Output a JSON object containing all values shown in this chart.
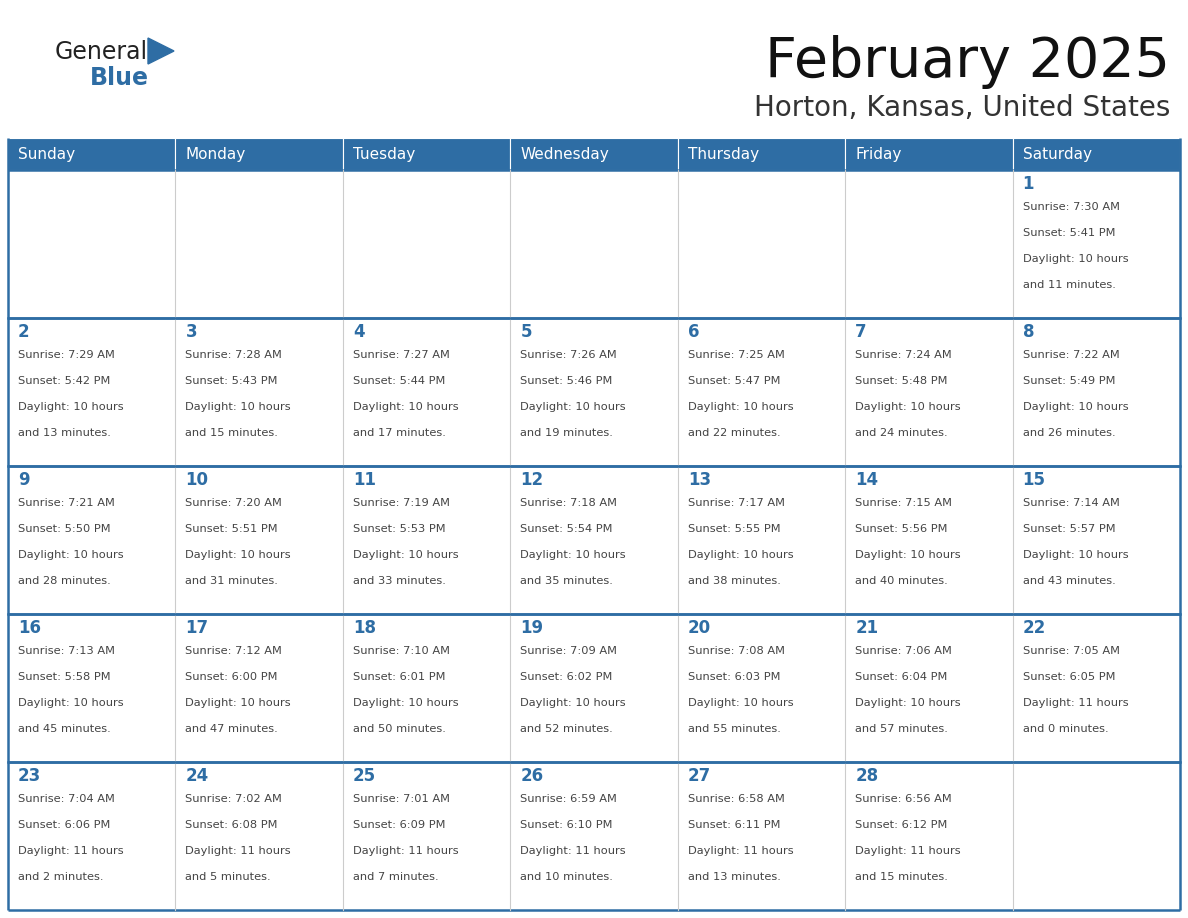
{
  "title": "February 2025",
  "subtitle": "Horton, Kansas, United States",
  "header_bg_color": "#2E6DA4",
  "header_text_color": "#FFFFFF",
  "day_headers": [
    "Sunday",
    "Monday",
    "Tuesday",
    "Wednesday",
    "Thursday",
    "Friday",
    "Saturday"
  ],
  "cell_bg_color": "#FFFFFF",
  "grid_line_color": "#2E6DA4",
  "day_num_color": "#2E6DA4",
  "info_text_color": "#444444",
  "logo_general_color": "#222222",
  "logo_blue_color": "#2E6DA4",
  "calendar_data": [
    [
      null,
      null,
      null,
      null,
      null,
      null,
      {
        "day": 1,
        "sunrise": "7:30 AM",
        "sunset": "5:41 PM",
        "daylight": "10 hours",
        "daylight2": "and 11 minutes."
      }
    ],
    [
      {
        "day": 2,
        "sunrise": "7:29 AM",
        "sunset": "5:42 PM",
        "daylight": "10 hours",
        "daylight2": "and 13 minutes."
      },
      {
        "day": 3,
        "sunrise": "7:28 AM",
        "sunset": "5:43 PM",
        "daylight": "10 hours",
        "daylight2": "and 15 minutes."
      },
      {
        "day": 4,
        "sunrise": "7:27 AM",
        "sunset": "5:44 PM",
        "daylight": "10 hours",
        "daylight2": "and 17 minutes."
      },
      {
        "day": 5,
        "sunrise": "7:26 AM",
        "sunset": "5:46 PM",
        "daylight": "10 hours",
        "daylight2": "and 19 minutes."
      },
      {
        "day": 6,
        "sunrise": "7:25 AM",
        "sunset": "5:47 PM",
        "daylight": "10 hours",
        "daylight2": "and 22 minutes."
      },
      {
        "day": 7,
        "sunrise": "7:24 AM",
        "sunset": "5:48 PM",
        "daylight": "10 hours",
        "daylight2": "and 24 minutes."
      },
      {
        "day": 8,
        "sunrise": "7:22 AM",
        "sunset": "5:49 PM",
        "daylight": "10 hours",
        "daylight2": "and 26 minutes."
      }
    ],
    [
      {
        "day": 9,
        "sunrise": "7:21 AM",
        "sunset": "5:50 PM",
        "daylight": "10 hours",
        "daylight2": "and 28 minutes."
      },
      {
        "day": 10,
        "sunrise": "7:20 AM",
        "sunset": "5:51 PM",
        "daylight": "10 hours",
        "daylight2": "and 31 minutes."
      },
      {
        "day": 11,
        "sunrise": "7:19 AM",
        "sunset": "5:53 PM",
        "daylight": "10 hours",
        "daylight2": "and 33 minutes."
      },
      {
        "day": 12,
        "sunrise": "7:18 AM",
        "sunset": "5:54 PM",
        "daylight": "10 hours",
        "daylight2": "and 35 minutes."
      },
      {
        "day": 13,
        "sunrise": "7:17 AM",
        "sunset": "5:55 PM",
        "daylight": "10 hours",
        "daylight2": "and 38 minutes."
      },
      {
        "day": 14,
        "sunrise": "7:15 AM",
        "sunset": "5:56 PM",
        "daylight": "10 hours",
        "daylight2": "and 40 minutes."
      },
      {
        "day": 15,
        "sunrise": "7:14 AM",
        "sunset": "5:57 PM",
        "daylight": "10 hours",
        "daylight2": "and 43 minutes."
      }
    ],
    [
      {
        "day": 16,
        "sunrise": "7:13 AM",
        "sunset": "5:58 PM",
        "daylight": "10 hours",
        "daylight2": "and 45 minutes."
      },
      {
        "day": 17,
        "sunrise": "7:12 AM",
        "sunset": "6:00 PM",
        "daylight": "10 hours",
        "daylight2": "and 47 minutes."
      },
      {
        "day": 18,
        "sunrise": "7:10 AM",
        "sunset": "6:01 PM",
        "daylight": "10 hours",
        "daylight2": "and 50 minutes."
      },
      {
        "day": 19,
        "sunrise": "7:09 AM",
        "sunset": "6:02 PM",
        "daylight": "10 hours",
        "daylight2": "and 52 minutes."
      },
      {
        "day": 20,
        "sunrise": "7:08 AM",
        "sunset": "6:03 PM",
        "daylight": "10 hours",
        "daylight2": "and 55 minutes."
      },
      {
        "day": 21,
        "sunrise": "7:06 AM",
        "sunset": "6:04 PM",
        "daylight": "10 hours",
        "daylight2": "and 57 minutes."
      },
      {
        "day": 22,
        "sunrise": "7:05 AM",
        "sunset": "6:05 PM",
        "daylight": "11 hours",
        "daylight2": "and 0 minutes."
      }
    ],
    [
      {
        "day": 23,
        "sunrise": "7:04 AM",
        "sunset": "6:06 PM",
        "daylight": "11 hours",
        "daylight2": "and 2 minutes."
      },
      {
        "day": 24,
        "sunrise": "7:02 AM",
        "sunset": "6:08 PM",
        "daylight": "11 hours",
        "daylight2": "and 5 minutes."
      },
      {
        "day": 25,
        "sunrise": "7:01 AM",
        "sunset": "6:09 PM",
        "daylight": "11 hours",
        "daylight2": "and 7 minutes."
      },
      {
        "day": 26,
        "sunrise": "6:59 AM",
        "sunset": "6:10 PM",
        "daylight": "11 hours",
        "daylight2": "and 10 minutes."
      },
      {
        "day": 27,
        "sunrise": "6:58 AM",
        "sunset": "6:11 PM",
        "daylight": "11 hours",
        "daylight2": "and 13 minutes."
      },
      {
        "day": 28,
        "sunrise": "6:56 AM",
        "sunset": "6:12 PM",
        "daylight": "11 hours",
        "daylight2": "and 15 minutes."
      },
      null
    ]
  ]
}
